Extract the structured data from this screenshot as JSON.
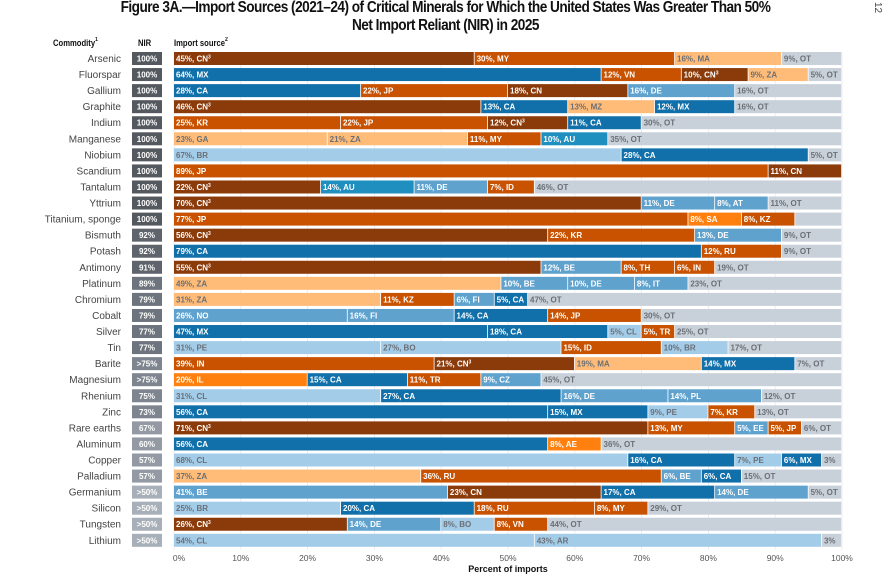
{
  "page_number": "12",
  "chart_data": {
    "type": "bar",
    "orientation": "horizontal-stacked-100",
    "title_prefix": "Figure 3A.",
    "title_line1_rest": "—Import Sources (2021–24) of Critical Minerals for Which the United States Was Greater Than 50%",
    "title_line2": "Net Import Reliant (NIR) in 2025",
    "column_headers": {
      "commodity": "Commodity",
      "commodity_note": "1",
      "nir": "NIR",
      "import_source": "Import source",
      "import_source_note": "2"
    },
    "xlabel": "Percent of imports",
    "xlim": [
      0,
      100
    ],
    "xticks": [
      "0%",
      "10%",
      "20%",
      "30%",
      "40%",
      "50%",
      "60%",
      "70%",
      "80%",
      "90%",
      "100%"
    ],
    "grid": true,
    "country_colors": {
      "CN": "#8b3a0a",
      "JP": "#c85200",
      "KR": "#c85200",
      "MY": "#c85200",
      "RU": "#c85200",
      "TR": "#c85200",
      "VN": "#c85200",
      "IN": "#c85200",
      "ID": "#c85200",
      "KZ": "#c85200",
      "TH": "#c85200",
      "SA": "#ff800e",
      "IL": "#ff800e",
      "AE": "#ff800e",
      "ZA": "#ffbc79",
      "MA": "#ffbc79",
      "GA": "#ffbc79",
      "MZ": "#ffbc79",
      "CA": "#1170aa",
      "MX": "#1170aa",
      "AU": "#1f8fbf",
      "DE": "#5fa2ce",
      "BE": "#5fa2ce",
      "FI": "#5fa2ce",
      "AT": "#5fa2ce",
      "IT": "#5fa2ce",
      "NO": "#5fa2ce",
      "EE": "#5fa2ce",
      "PL": "#5fa2ce",
      "CZ": "#5fa2ce",
      "BR": "#a3cce9",
      "CL": "#a3cce9",
      "PE": "#a3cce9",
      "BO": "#a3cce9",
      "AR": "#a3cce9",
      "OT": "#c8d0d9"
    },
    "rows": [
      {
        "commodity": "Arsenic",
        "nir": "100%",
        "segments": [
          {
            "c": "CN",
            "v": 45,
            "label": "45%, CN",
            "note": "3"
          },
          {
            "c": "MY",
            "v": 30,
            "label": "30%, MY"
          },
          {
            "c": "MA",
            "v": 16,
            "label": "16%, MA"
          },
          {
            "c": "OT",
            "v": 9,
            "label": "9%, OT"
          }
        ]
      },
      {
        "commodity": "Fluorspar",
        "nir": "100%",
        "segments": [
          {
            "c": "MX",
            "v": 64,
            "label": "64%, MX"
          },
          {
            "c": "VN",
            "v": 12,
            "label": "12%, VN"
          },
          {
            "c": "CN",
            "v": 10,
            "label": "10%, CN",
            "note": "3"
          },
          {
            "c": "ZA",
            "v": 9,
            "label": "9%, ZA"
          },
          {
            "c": "OT",
            "v": 5,
            "label": "5%, OT"
          }
        ]
      },
      {
        "commodity": "Gallium",
        "nir": "100%",
        "segments": [
          {
            "c": "CA",
            "v": 28,
            "label": "28%, CA"
          },
          {
            "c": "JP",
            "v": 22,
            "label": "22%, JP"
          },
          {
            "c": "CN",
            "v": 18,
            "label": "18%, CN"
          },
          {
            "c": "DE",
            "v": 16,
            "label": "16%, DE"
          },
          {
            "c": "OT",
            "v": 16,
            "label": "16%, OT"
          }
        ]
      },
      {
        "commodity": "Graphite",
        "nir": "100%",
        "segments": [
          {
            "c": "CN",
            "v": 46,
            "label": "46%, CN",
            "note": "3"
          },
          {
            "c": "CA",
            "v": 13,
            "label": "13%, CA"
          },
          {
            "c": "MZ",
            "v": 13,
            "label": "13%, MZ"
          },
          {
            "c": "MX",
            "v": 12,
            "label": "12%, MX"
          },
          {
            "c": "OT",
            "v": 16,
            "label": "16%, OT"
          }
        ]
      },
      {
        "commodity": "Indium",
        "nir": "100%",
        "segments": [
          {
            "c": "KR",
            "v": 25,
            "label": "25%, KR"
          },
          {
            "c": "JP",
            "v": 22,
            "label": "22%, JP"
          },
          {
            "c": "CN",
            "v": 12,
            "label": "12%, CN",
            "note": "3"
          },
          {
            "c": "CA",
            "v": 11,
            "label": "11%, CA"
          },
          {
            "c": "OT",
            "v": 30,
            "label": "30%, OT"
          }
        ]
      },
      {
        "commodity": "Manganese",
        "nir": "100%",
        "segments": [
          {
            "c": "GA",
            "v": 23,
            "label": "23%, GA"
          },
          {
            "c": "ZA",
            "v": 21,
            "label": "21%, ZA"
          },
          {
            "c": "MY",
            "v": 11,
            "label": "11%, MY"
          },
          {
            "c": "AU",
            "v": 10,
            "label": "10%, AU"
          },
          {
            "c": "OT",
            "v": 35,
            "label": "35%, OT"
          }
        ]
      },
      {
        "commodity": "Niobium",
        "nir": "100%",
        "segments": [
          {
            "c": "BR",
            "v": 67,
            "label": "67%, BR"
          },
          {
            "c": "CA",
            "v": 28,
            "label": "28%, CA"
          },
          {
            "c": "OT",
            "v": 5,
            "label": "5%, OT"
          }
        ]
      },
      {
        "commodity": "Scandium",
        "nir": "100%",
        "segments": [
          {
            "c": "JP",
            "v": 89,
            "label": "89%, JP"
          },
          {
            "c": "CN",
            "v": 11,
            "label": "11%, CN"
          }
        ]
      },
      {
        "commodity": "Tantalum",
        "nir": "100%",
        "segments": [
          {
            "c": "CN",
            "v": 22,
            "label": "22%, CN",
            "note": "3"
          },
          {
            "c": "AU",
            "v": 14,
            "label": "14%, AU"
          },
          {
            "c": "DE",
            "v": 11,
            "label": "11%, DE"
          },
          {
            "c": "ID",
            "v": 7,
            "label": "7%, ID"
          },
          {
            "c": "OT",
            "v": 46,
            "label": "46%, OT"
          }
        ]
      },
      {
        "commodity": "Yttrium",
        "nir": "100%",
        "segments": [
          {
            "c": "CN",
            "v": 70,
            "label": "70%, CN",
            "note": "3"
          },
          {
            "c": "DE",
            "v": 11,
            "label": "11%, DE"
          },
          {
            "c": "AT",
            "v": 8,
            "label": "8%, AT"
          },
          {
            "c": "OT",
            "v": 11,
            "label": "11%, OT"
          }
        ]
      },
      {
        "commodity": "Titanium, sponge",
        "nir": "100%",
        "segments": [
          {
            "c": "JP",
            "v": 77,
            "label": "77%, JP"
          },
          {
            "c": "SA",
            "v": 8,
            "label": "8%, SA"
          },
          {
            "c": "KZ",
            "v": 8,
            "label": "8%, KZ"
          },
          {
            "c": "OT",
            "v": 7,
            "label": ""
          }
        ]
      },
      {
        "commodity": "Bismuth",
        "nir": "92%",
        "segments": [
          {
            "c": "CN",
            "v": 56,
            "label": "56%, CN",
            "note": "3"
          },
          {
            "c": "KR",
            "v": 22,
            "label": "22%, KR"
          },
          {
            "c": "DE",
            "v": 13,
            "label": "13%, DE"
          },
          {
            "c": "OT",
            "v": 9,
            "label": "9%, OT"
          }
        ]
      },
      {
        "commodity": "Potash",
        "nir": "92%",
        "segments": [
          {
            "c": "CA",
            "v": 79,
            "label": "79%, CA"
          },
          {
            "c": "RU",
            "v": 12,
            "label": "12%, RU"
          },
          {
            "c": "OT",
            "v": 9,
            "label": "9%, OT"
          }
        ]
      },
      {
        "commodity": "Antimony",
        "nir": "91%",
        "segments": [
          {
            "c": "CN",
            "v": 55,
            "label": "55%, CN",
            "note": "3"
          },
          {
            "c": "BE",
            "v": 12,
            "label": "12%, BE"
          },
          {
            "c": "TH",
            "v": 8,
            "label": "8%, TH"
          },
          {
            "c": "IN",
            "v": 6,
            "label": "6%, IN"
          },
          {
            "c": "OT",
            "v": 19,
            "label": "19%, OT"
          }
        ]
      },
      {
        "commodity": "Platinum",
        "nir": "89%",
        "segments": [
          {
            "c": "ZA",
            "v": 49,
            "label": "49%, ZA"
          },
          {
            "c": "BE",
            "v": 10,
            "label": "10%, BE"
          },
          {
            "c": "DE",
            "v": 10,
            "label": "10%, DE"
          },
          {
            "c": "IT",
            "v": 8,
            "label": "8%, IT"
          },
          {
            "c": "OT",
            "v": 23,
            "label": "23%, OT"
          }
        ]
      },
      {
        "commodity": "Chromium",
        "nir": "79%",
        "segments": [
          {
            "c": "ZA",
            "v": 31,
            "label": "31%, ZA"
          },
          {
            "c": "KZ",
            "v": 11,
            "label": "11%, KZ"
          },
          {
            "c": "FI",
            "v": 6,
            "label": "6%, FI"
          },
          {
            "c": "CA",
            "v": 5,
            "label": "5%, CA"
          },
          {
            "c": "OT",
            "v": 47,
            "label": "47%, OT"
          }
        ]
      },
      {
        "commodity": "Cobalt",
        "nir": "79%",
        "segments": [
          {
            "c": "NO",
            "v": 26,
            "label": "26%, NO"
          },
          {
            "c": "FI",
            "v": 16,
            "label": "16%, FI"
          },
          {
            "c": "CA",
            "v": 14,
            "label": "14%, CA"
          },
          {
            "c": "JP",
            "v": 14,
            "label": "14%, JP"
          },
          {
            "c": "OT",
            "v": 30,
            "label": "30%, OT"
          }
        ]
      },
      {
        "commodity": "Silver",
        "nir": "77%",
        "segments": [
          {
            "c": "MX",
            "v": 47,
            "label": "47%, MX"
          },
          {
            "c": "CA",
            "v": 18,
            "label": "18%, CA"
          },
          {
            "c": "CL",
            "v": 5,
            "label": "5%, CL"
          },
          {
            "c": "TR",
            "v": 5,
            "label": "5%, TR"
          },
          {
            "c": "OT",
            "v": 25,
            "label": "25%, OT"
          }
        ]
      },
      {
        "commodity": "Tin",
        "nir": "77%",
        "segments": [
          {
            "c": "PE",
            "v": 31,
            "label": "31%, PE"
          },
          {
            "c": "BO",
            "v": 27,
            "label": "27%, BO"
          },
          {
            "c": "ID",
            "v": 15,
            "label": "15%, ID"
          },
          {
            "c": "BR",
            "v": 10,
            "label": "10%, BR"
          },
          {
            "c": "OT",
            "v": 17,
            "label": "17%, OT"
          }
        ]
      },
      {
        "commodity": "Barite",
        "nir": ">75%",
        "segments": [
          {
            "c": "IN",
            "v": 39,
            "label": "39%, IN"
          },
          {
            "c": "CN",
            "v": 21,
            "label": "21%, CN",
            "note": "3"
          },
          {
            "c": "MA",
            "v": 19,
            "label": "19%, MA"
          },
          {
            "c": "MX",
            "v": 14,
            "label": "14%, MX"
          },
          {
            "c": "OT",
            "v": 7,
            "label": "7%, OT"
          }
        ]
      },
      {
        "commodity": "Magnesium",
        "nir": ">75%",
        "segments": [
          {
            "c": "IL",
            "v": 20,
            "label": "20%, IL"
          },
          {
            "c": "CA",
            "v": 15,
            "label": "15%, CA"
          },
          {
            "c": "TR",
            "v": 11,
            "label": "11%, TR"
          },
          {
            "c": "CZ",
            "v": 9,
            "label": "9%, CZ"
          },
          {
            "c": "OT",
            "v": 45,
            "label": "45%, OT"
          }
        ]
      },
      {
        "commodity": "Rhenium",
        "nir": "75%",
        "segments": [
          {
            "c": "CL",
            "v": 31,
            "label": "31%, CL"
          },
          {
            "c": "CA",
            "v": 27,
            "label": "27%, CA"
          },
          {
            "c": "DE",
            "v": 16,
            "label": "16%, DE"
          },
          {
            "c": "PL",
            "v": 14,
            "label": "14%, PL"
          },
          {
            "c": "OT",
            "v": 12,
            "label": "12%, OT"
          }
        ]
      },
      {
        "commodity": "Zinc",
        "nir": "73%",
        "segments": [
          {
            "c": "CA",
            "v": 56,
            "label": "56%, CA"
          },
          {
            "c": "MX",
            "v": 15,
            "label": "15%, MX"
          },
          {
            "c": "PE",
            "v": 9,
            "label": "9%, PE"
          },
          {
            "c": "KR",
            "v": 7,
            "label": "7%, KR"
          },
          {
            "c": "OT",
            "v": 13,
            "label": "13%, OT"
          }
        ]
      },
      {
        "commodity": "Rare earths",
        "nir": "67%",
        "segments": [
          {
            "c": "CN",
            "v": 71,
            "label": "71%, CN",
            "note": "3"
          },
          {
            "c": "MY",
            "v": 13,
            "label": "13%, MY"
          },
          {
            "c": "EE",
            "v": 5,
            "label": "5%, EE"
          },
          {
            "c": "JP",
            "v": 5,
            "label": "5%, JP"
          },
          {
            "c": "OT",
            "v": 6,
            "label": "6%, OT"
          }
        ]
      },
      {
        "commodity": "Aluminum",
        "nir": "60%",
        "segments": [
          {
            "c": "CA",
            "v": 56,
            "label": "56%, CA"
          },
          {
            "c": "AE",
            "v": 8,
            "label": "8%, AE"
          },
          {
            "c": "OT",
            "v": 36,
            "label": "36%, OT"
          }
        ]
      },
      {
        "commodity": "Copper",
        "nir": "57%",
        "segments": [
          {
            "c": "CL",
            "v": 68,
            "label": "68%, CL"
          },
          {
            "c": "CA",
            "v": 16,
            "label": "16%, CA"
          },
          {
            "c": "PE",
            "v": 7,
            "label": "7%, PE"
          },
          {
            "c": "MX",
            "v": 6,
            "label": "6%, MX"
          },
          {
            "c": "OT",
            "v": 3,
            "label": "3%"
          }
        ]
      },
      {
        "commodity": "Palladium",
        "nir": "57%",
        "segments": [
          {
            "c": "ZA",
            "v": 37,
            "label": "37%, ZA"
          },
          {
            "c": "RU",
            "v": 36,
            "label": "36%, RU"
          },
          {
            "c": "BE",
            "v": 6,
            "label": "6%, BE"
          },
          {
            "c": "CA",
            "v": 6,
            "label": "6%, CA"
          },
          {
            "c": "OT",
            "v": 15,
            "label": "15%, OT"
          }
        ]
      },
      {
        "commodity": "Germanium",
        "nir": ">50%",
        "segments": [
          {
            "c": "BE",
            "v": 41,
            "label": "41%, BE"
          },
          {
            "c": "CN",
            "v": 23,
            "label": "23%, CN"
          },
          {
            "c": "CA",
            "v": 17,
            "label": "17%, CA"
          },
          {
            "c": "DE",
            "v": 14,
            "label": "14%, DE"
          },
          {
            "c": "OT",
            "v": 5,
            "label": "5%, OT"
          }
        ]
      },
      {
        "commodity": "Silicon",
        "nir": ">50%",
        "segments": [
          {
            "c": "BR",
            "v": 25,
            "label": "25%, BR"
          },
          {
            "c": "CA",
            "v": 20,
            "label": "20%, CA"
          },
          {
            "c": "RU",
            "v": 18,
            "label": "18%, RU"
          },
          {
            "c": "MY",
            "v": 8,
            "label": "8%, MY"
          },
          {
            "c": "OT",
            "v": 29,
            "label": "29%, OT"
          }
        ]
      },
      {
        "commodity": "Tungsten",
        "nir": ">50%",
        "segments": [
          {
            "c": "CN",
            "v": 26,
            "label": "26%, CN",
            "note": "3"
          },
          {
            "c": "DE",
            "v": 14,
            "label": "14%, DE"
          },
          {
            "c": "BO",
            "v": 8,
            "label": "8%, BO"
          },
          {
            "c": "VN",
            "v": 8,
            "label": "8%, VN"
          },
          {
            "c": "OT",
            "v": 44,
            "label": "44%, OT"
          }
        ]
      },
      {
        "commodity": "Lithium",
        "nir": ">50%",
        "segments": [
          {
            "c": "CL",
            "v": 54,
            "label": "54%, CL"
          },
          {
            "c": "AR",
            "v": 43,
            "label": "43%, AR"
          },
          {
            "c": "OT",
            "v": 3,
            "label": "3%"
          }
        ]
      }
    ]
  }
}
